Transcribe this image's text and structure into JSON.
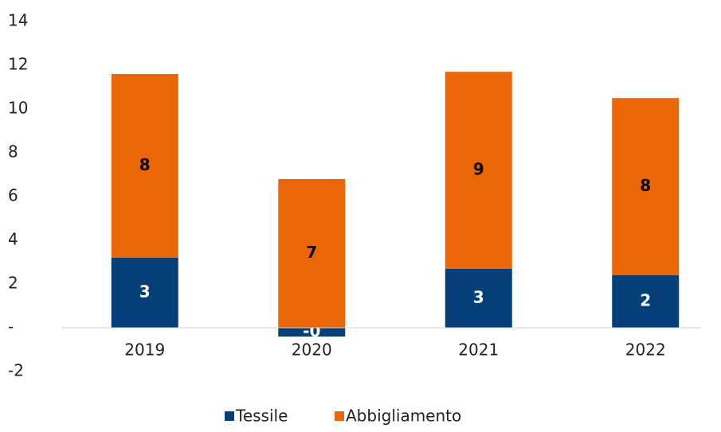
{
  "chart_data": {
    "type": "stacked_bar",
    "categories": [
      "2019",
      "2020",
      "2021",
      "2022"
    ],
    "series": [
      {
        "name": "Tessile",
        "color": "#063f7a",
        "values": [
          3.2,
          -0.4,
          2.7,
          2.4
        ],
        "value_labels": [
          "3",
          "-0",
          "3",
          "2"
        ]
      },
      {
        "name": "Abbigliamento",
        "color": "#ec6608",
        "values": [
          8.4,
          6.8,
          9.0,
          8.1
        ],
        "value_labels": [
          "8",
          "7",
          "9",
          "8"
        ]
      }
    ],
    "ylim": [
      -2,
      14
    ],
    "yticks": [
      -2,
      {
        "value": 0,
        "label": "-"
      },
      2,
      4,
      6,
      8,
      10,
      12,
      14
    ],
    "grid": false,
    "legend": "bottom"
  }
}
